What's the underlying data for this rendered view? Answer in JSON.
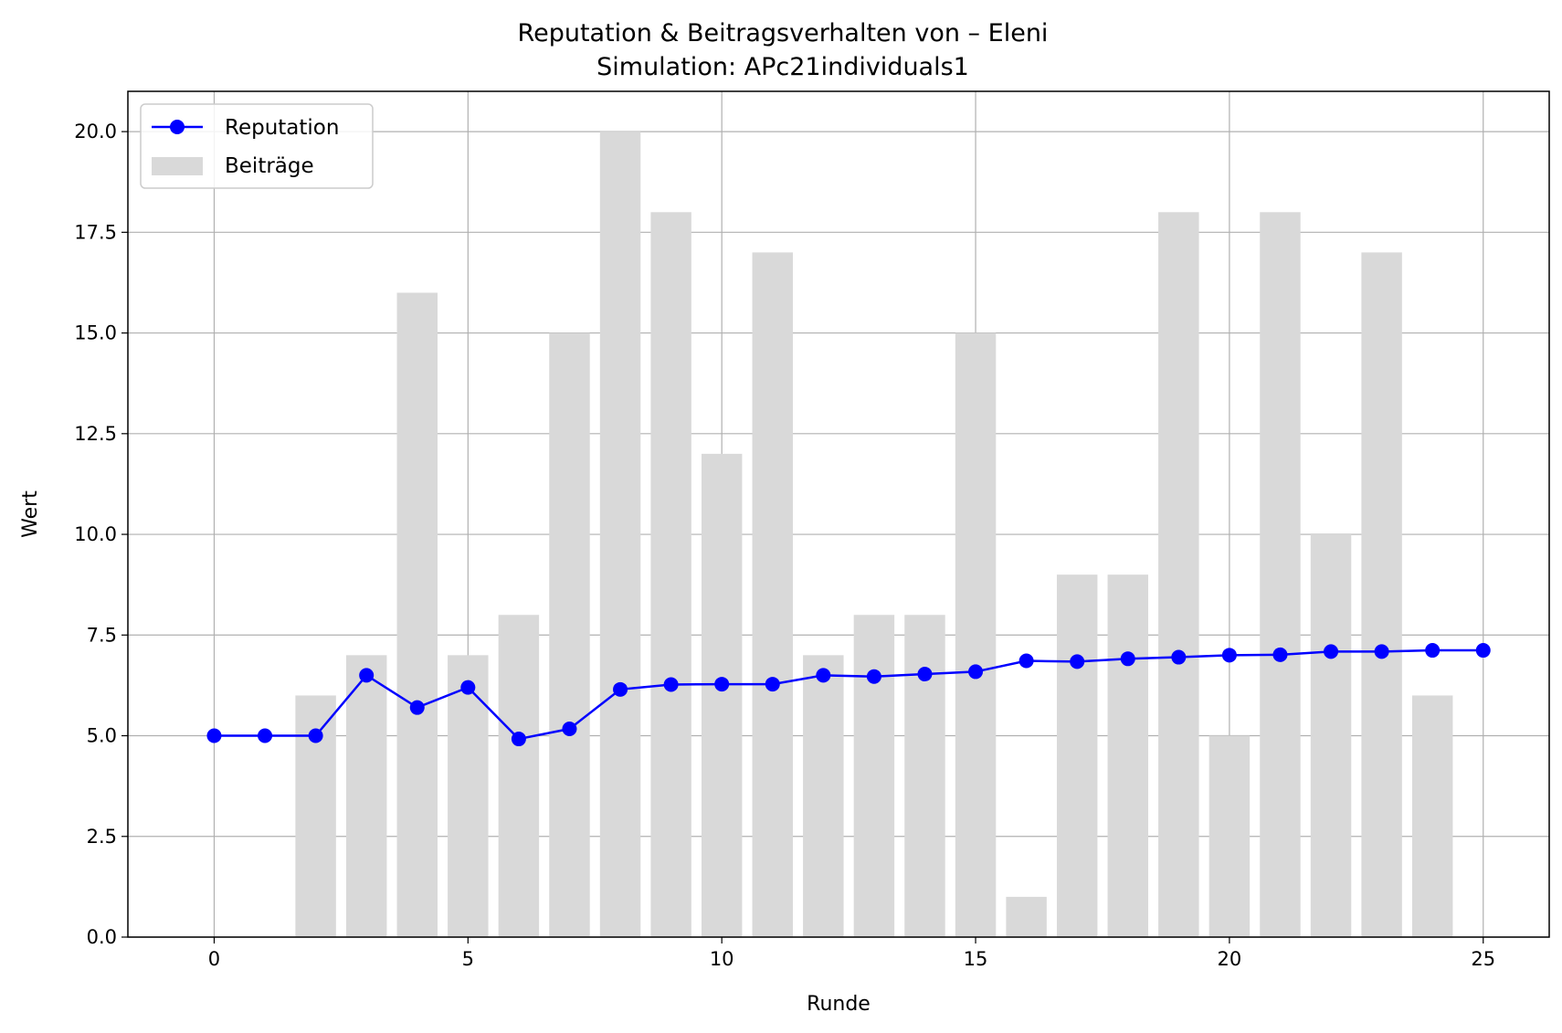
{
  "chart_data": {
    "type": "bar",
    "title": "Reputation & Beitragsverhalten von – Eleni",
    "subtitle": "Simulation: APc21individuals1",
    "xlabel": "Runde",
    "ylabel": "Wert",
    "xlim": [
      -1.7,
      26.3
    ],
    "ylim": [
      0,
      21
    ],
    "xticks": [
      0,
      5,
      10,
      15,
      20,
      25
    ],
    "yticks": [
      0,
      2.5,
      5,
      7.5,
      10,
      12.5,
      15,
      17.5,
      20
    ],
    "grid": true,
    "legend_position": "top-left",
    "x": [
      0,
      1,
      2,
      3,
      4,
      5,
      6,
      7,
      8,
      9,
      10,
      11,
      12,
      13,
      14,
      15,
      16,
      17,
      18,
      19,
      20,
      21,
      22,
      23,
      24,
      25
    ],
    "series": [
      {
        "name": "Reputation",
        "type": "line",
        "color": "#0000ff",
        "values": [
          5.0,
          5.0,
          5.0,
          6.5,
          5.7,
          6.2,
          4.92,
          5.17,
          6.15,
          6.27,
          6.28,
          6.28,
          6.5,
          6.47,
          6.53,
          6.59,
          6.86,
          6.84,
          6.91,
          6.95,
          7.0,
          7.01,
          7.09,
          7.09,
          7.12,
          7.12
        ]
      },
      {
        "name": "Beiträge",
        "type": "bar",
        "color": "#d9d9d9",
        "values": [
          0,
          0,
          6,
          7,
          16,
          7,
          8,
          15,
          20,
          18,
          12,
          17,
          7,
          8,
          8,
          15,
          1,
          9,
          9,
          18,
          5,
          18,
          10,
          17,
          6,
          0
        ]
      }
    ]
  }
}
